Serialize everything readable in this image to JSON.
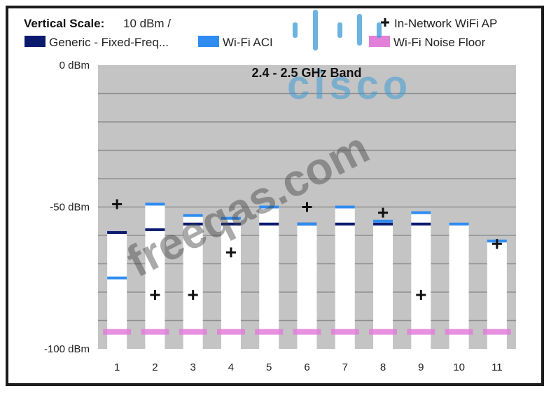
{
  "header": {
    "scale_label": "Vertical Scale:",
    "scale_value": "10 dBm /",
    "legend": [
      {
        "label": "Generic - Fixed-Freq...",
        "color": "#0c1a6e"
      },
      {
        "label": "Wi-Fi ACI",
        "color": "#2e8cf0"
      },
      {
        "label": "In-Network WiFi AP",
        "marker": "plus"
      },
      {
        "label": "Wi-Fi Noise Floor",
        "color": "#e27fd8"
      }
    ]
  },
  "watermarks": {
    "logo": "cisco",
    "site": "freeqas.com"
  },
  "chart_data": {
    "type": "bar",
    "title": "2.4 - 2.5 GHz Band",
    "categories": [
      "1",
      "2",
      "3",
      "4",
      "5",
      "6",
      "7",
      "8",
      "9",
      "10",
      "11"
    ],
    "ylim": [
      -100,
      0
    ],
    "y_ticks": [
      {
        "value": 0,
        "label": "0 dBm"
      },
      {
        "value": -50,
        "label": "-50 dBm"
      },
      {
        "value": -100,
        "label": "-100 dBm"
      }
    ],
    "grid": true,
    "series": [
      {
        "name": "Wi-Fi ACI",
        "color": "#2e8cf0",
        "values": [
          -75,
          -49,
          -53,
          -54,
          -50,
          -56,
          -50,
          -55,
          -52,
          -56,
          -62
        ]
      },
      {
        "name": "Generic - Fixed-Freq...",
        "color": "#0c1a6e",
        "values": [
          -59,
          -58,
          -56,
          -56,
          -56,
          -56,
          -56,
          -56,
          -56,
          null,
          null
        ]
      },
      {
        "name": "In-Network WiFi AP",
        "marker": "plus",
        "points": [
          [
            1,
            -49
          ],
          [
            2,
            -81
          ],
          [
            3,
            -81
          ],
          [
            4,
            -66
          ],
          [
            6,
            -50
          ],
          [
            8,
            -52
          ],
          [
            9,
            -81
          ],
          [
            11,
            -63
          ]
        ]
      },
      {
        "name": "Wi-Fi Noise Floor",
        "color": "#e27fd8",
        "values": [
          -94,
          -94,
          -94,
          -94,
          -94,
          -94,
          -94,
          -94,
          -94,
          -94,
          -94
        ]
      }
    ]
  }
}
